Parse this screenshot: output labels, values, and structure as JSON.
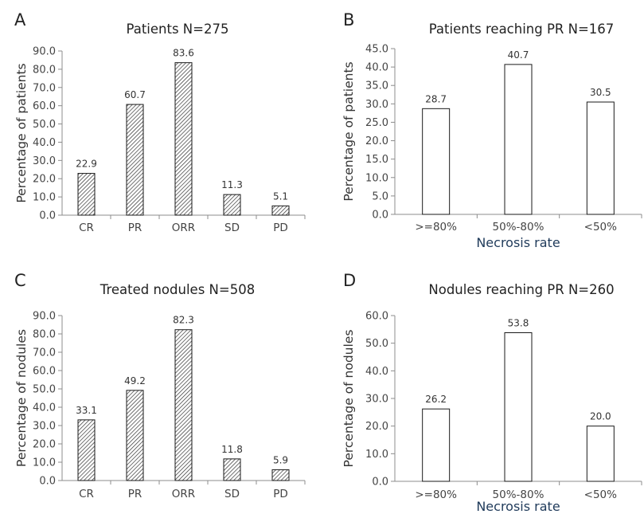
{
  "chart_data": [
    {
      "panel": "A",
      "type": "bar",
      "title": "Patients N=275",
      "xlabel": "",
      "ylabel": "Percentage of patients",
      "categories": [
        "CR",
        "PR",
        "ORR",
        "SD",
        "PD"
      ],
      "values": [
        22.9,
        60.7,
        83.6,
        11.3,
        5.1
      ],
      "data_labels": [
        "22.9",
        "60.7",
        "83.6",
        "11.3",
        "5.1"
      ],
      "ylim": [
        0,
        90
      ],
      "yticks": [
        "0.0",
        "10.0",
        "20.0",
        "30.0",
        "40.0",
        "50.0",
        "60.0",
        "70.0",
        "80.0",
        "90.0"
      ],
      "bar_fill": "hatched",
      "grid": false,
      "legend": "none"
    },
    {
      "panel": "B",
      "type": "bar",
      "title": "Patients reaching PR N=167",
      "xlabel": "Necrosis rate",
      "ylabel": "Percentage of patients",
      "categories": [
        ">=80%",
        "50%-80%",
        "<50%"
      ],
      "values": [
        28.7,
        40.7,
        30.5
      ],
      "data_labels": [
        "28.7",
        "40.7",
        "30.5"
      ],
      "ylim": [
        0,
        45
      ],
      "yticks": [
        "0.0",
        "5.0",
        "10.0",
        "15.0",
        "20.0",
        "25.0",
        "30.0",
        "35.0",
        "40.0",
        "45.0"
      ],
      "bar_fill": "white",
      "grid": false,
      "legend": "none"
    },
    {
      "panel": "C",
      "type": "bar",
      "title": "Treated nodules N=508",
      "xlabel": "",
      "ylabel": "Percentage of nodules",
      "categories": [
        "CR",
        "PR",
        "ORR",
        "SD",
        "PD"
      ],
      "values": [
        33.1,
        49.2,
        82.3,
        11.8,
        5.9
      ],
      "data_labels": [
        "33.1",
        "49.2",
        "82.3",
        "11.8",
        "5.9"
      ],
      "ylim": [
        0,
        90
      ],
      "yticks": [
        "0.0",
        "10.0",
        "20.0",
        "30.0",
        "40.0",
        "50.0",
        "60.0",
        "70.0",
        "80.0",
        "90.0"
      ],
      "bar_fill": "hatched",
      "grid": false,
      "legend": "none"
    },
    {
      "panel": "D",
      "type": "bar",
      "title": "Nodules reaching PR N=260",
      "xlabel": "Necrosis rate",
      "ylabel": "Percentage of nodules",
      "categories": [
        ">=80%",
        "50%-80%",
        "<50%"
      ],
      "values": [
        26.2,
        53.8,
        20.0
      ],
      "data_labels": [
        "26.2",
        "53.8",
        "20.0"
      ],
      "ylim": [
        0,
        60
      ],
      "yticks": [
        "0.0",
        "10.0",
        "20.0",
        "30.0",
        "40.0",
        "50.0",
        "60.0"
      ],
      "bar_fill": "white",
      "grid": false,
      "legend": "none"
    }
  ],
  "colors": {
    "axis": "#8c8c8c",
    "bar_outline": "#1a1a1a",
    "hatch": "#333333",
    "xlabel": "#1f3a5a"
  }
}
